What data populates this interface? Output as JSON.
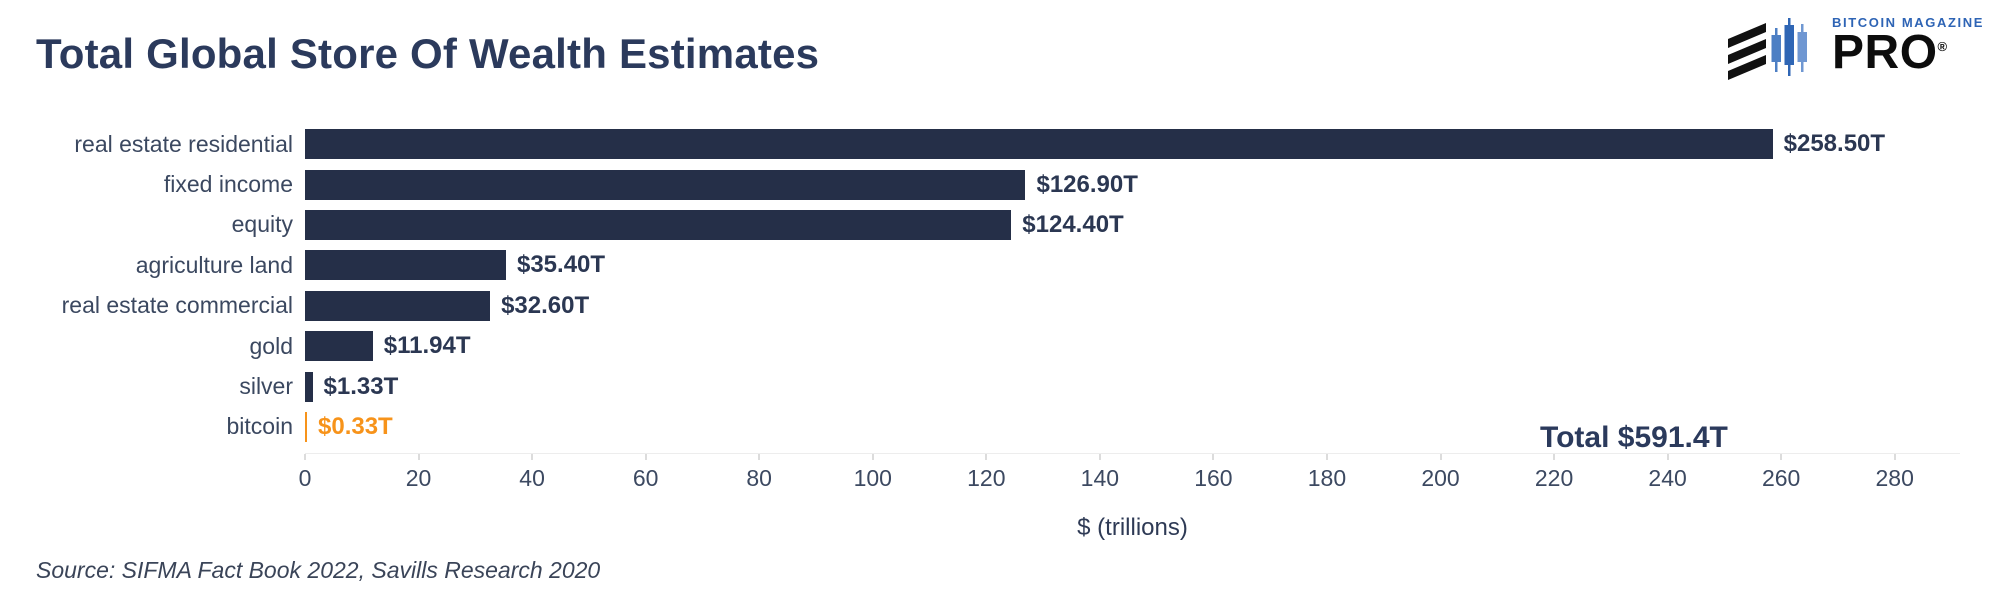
{
  "header": {
    "title": "Total Global Store Of Wealth Estimates",
    "logo": {
      "brand": "BITCOIN MAGAZINE",
      "product": "PRO",
      "registered": "®"
    }
  },
  "chart_data": {
    "type": "bar",
    "orientation": "horizontal",
    "title": "Total Global Store Of Wealth Estimates",
    "categories": [
      "real estate residential",
      "fixed income",
      "equity",
      "agriculture land",
      "real estate commercial",
      "gold",
      "silver",
      "bitcoin"
    ],
    "values": [
      258.5,
      126.9,
      124.4,
      35.4,
      32.6,
      11.94,
      1.33,
      0.33
    ],
    "value_labels": [
      "$258.50T",
      "$126.90T",
      "$124.40T",
      "$35.40T",
      "$32.60T",
      "$11.94T",
      "$1.33T",
      "$0.33T"
    ],
    "bar_colors": [
      "#252f48",
      "#252f48",
      "#252f48",
      "#252f48",
      "#252f48",
      "#252f48",
      "#252f48",
      "#f7931a"
    ],
    "label_colors": [
      "#2b3752",
      "#2b3752",
      "#2b3752",
      "#2b3752",
      "#2b3752",
      "#2b3752",
      "#2b3752",
      "#f7931a"
    ],
    "xlabel": "$ (trillions)",
    "xlim": [
      0,
      291.5
    ],
    "xticks": [
      0,
      20,
      40,
      60,
      80,
      100,
      120,
      140,
      160,
      180,
      200,
      220,
      240,
      260,
      280
    ],
    "grid": false,
    "legend": "none",
    "annotation": "Total $591.4T",
    "colors": {
      "bar_navy": "#252f48",
      "bitcoin_orange": "#f7931a",
      "title_navy": "#2b3a5c"
    }
  },
  "footer": {
    "source": "Source: SIFMA Fact Book 2022, Savills Research 2020"
  }
}
